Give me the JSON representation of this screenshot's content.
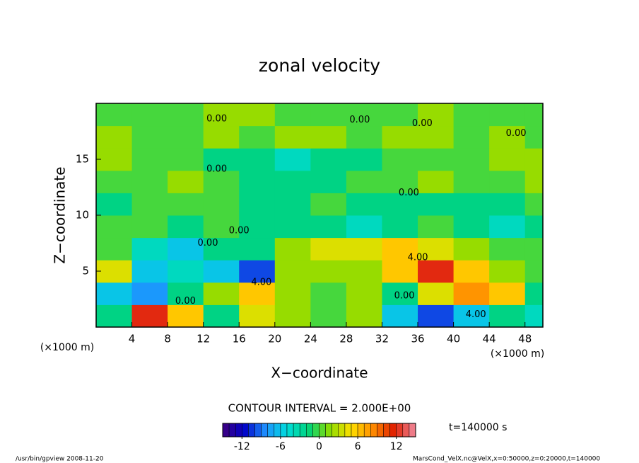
{
  "chart_data": {
    "type": "heatmap",
    "title": "zonal velocity",
    "x_label": "X−coordinate",
    "y_label": "Z−coordinate",
    "x_unit_left": "(×1000 m)",
    "x_unit_right": "(×1000 m)",
    "contour_interval": "CONTOUR INTERVAL = 2.000E+00",
    "time_label": "t=140000 s",
    "footer_left": "/usr/bin/gpview   2008-11-20",
    "footer_right": "MarsCond_VelX.nc@VelX,x=0:50000,z=0:20000,t=140000",
    "xlim": [
      0,
      50
    ],
    "ylim": [
      0,
      20
    ],
    "xticks": [
      4,
      8,
      12,
      16,
      20,
      24,
      28,
      32,
      36,
      40,
      44,
      48
    ],
    "yticks": [
      5,
      10,
      15
    ],
    "xbins": [
      0,
      4,
      8,
      12,
      16,
      20,
      24,
      28,
      32,
      36,
      40,
      44,
      48,
      50
    ],
    "ybins": [
      0,
      2,
      4,
      6,
      8,
      10,
      12,
      14,
      16,
      18,
      20
    ],
    "z": [
      [
        -2,
        12,
        6,
        -2,
        4,
        2,
        0,
        2,
        -6,
        -10,
        -6,
        -2,
        -4
      ],
      [
        -6,
        -8,
        -2,
        2,
        6,
        2,
        0,
        2,
        -2,
        4,
        8,
        6,
        -2
      ],
      [
        4,
        -6,
        -4,
        -6,
        -10,
        2,
        2,
        2,
        6,
        12,
        6,
        2,
        0
      ],
      [
        0,
        -4,
        -6,
        -2,
        -2,
        2,
        4,
        4,
        6,
        4,
        2,
        0,
        0
      ],
      [
        0,
        0,
        -2,
        0,
        -2,
        -2,
        -2,
        -4,
        -2,
        0,
        -2,
        -4,
        -2
      ],
      [
        -2,
        0,
        0,
        0,
        -2,
        -2,
        0,
        -2,
        -2,
        -2,
        -2,
        -2,
        0
      ],
      [
        0,
        0,
        2,
        0,
        -2,
        -2,
        -2,
        0,
        0,
        2,
        0,
        0,
        2
      ],
      [
        2,
        0,
        0,
        -2,
        -2,
        -4,
        -2,
        -2,
        0,
        0,
        0,
        2,
        2
      ],
      [
        2,
        0,
        0,
        2,
        0,
        2,
        2,
        0,
        2,
        2,
        0,
        2,
        0
      ],
      [
        0,
        0,
        0,
        2,
        2,
        0,
        0,
        0,
        0,
        2,
        0,
        0,
        0
      ]
    ],
    "clim": [
      -15,
      15
    ],
    "cticks": [
      -12,
      -6,
      0,
      6,
      12
    ],
    "colormap": [
      "#40007f",
      "#0000c8",
      "#1e90ff",
      "#00dcdc",
      "#00d27a",
      "#8cdc00",
      "#ffe000",
      "#ff8c00",
      "#e01e00",
      "#f08ca0"
    ],
    "contour_labels": [
      {
        "label": "0.00",
        "x": 13.5,
        "y": 18.6
      },
      {
        "label": "0.00",
        "x": 29.5,
        "y": 18.5
      },
      {
        "label": "0.00",
        "x": 36.5,
        "y": 18.2
      },
      {
        "label": "0.00",
        "x": 47,
        "y": 17.3
      },
      {
        "label": "0.00",
        "x": 13.5,
        "y": 14.1
      },
      {
        "label": "0.00",
        "x": 35,
        "y": 12.0
      },
      {
        "label": "0.00",
        "x": 16,
        "y": 8.6
      },
      {
        "label": "0.00",
        "x": 12.5,
        "y": 7.5
      },
      {
        "label": "4.00",
        "x": 36,
        "y": 6.2
      },
      {
        "label": "4.00",
        "x": 18.5,
        "y": 4.0
      },
      {
        "label": "0.00",
        "x": 34.5,
        "y": 2.8
      },
      {
        "label": "0.00",
        "x": 10,
        "y": 2.3
      },
      {
        "label": "4.00",
        "x": 42.5,
        "y": 1.1
      }
    ]
  }
}
